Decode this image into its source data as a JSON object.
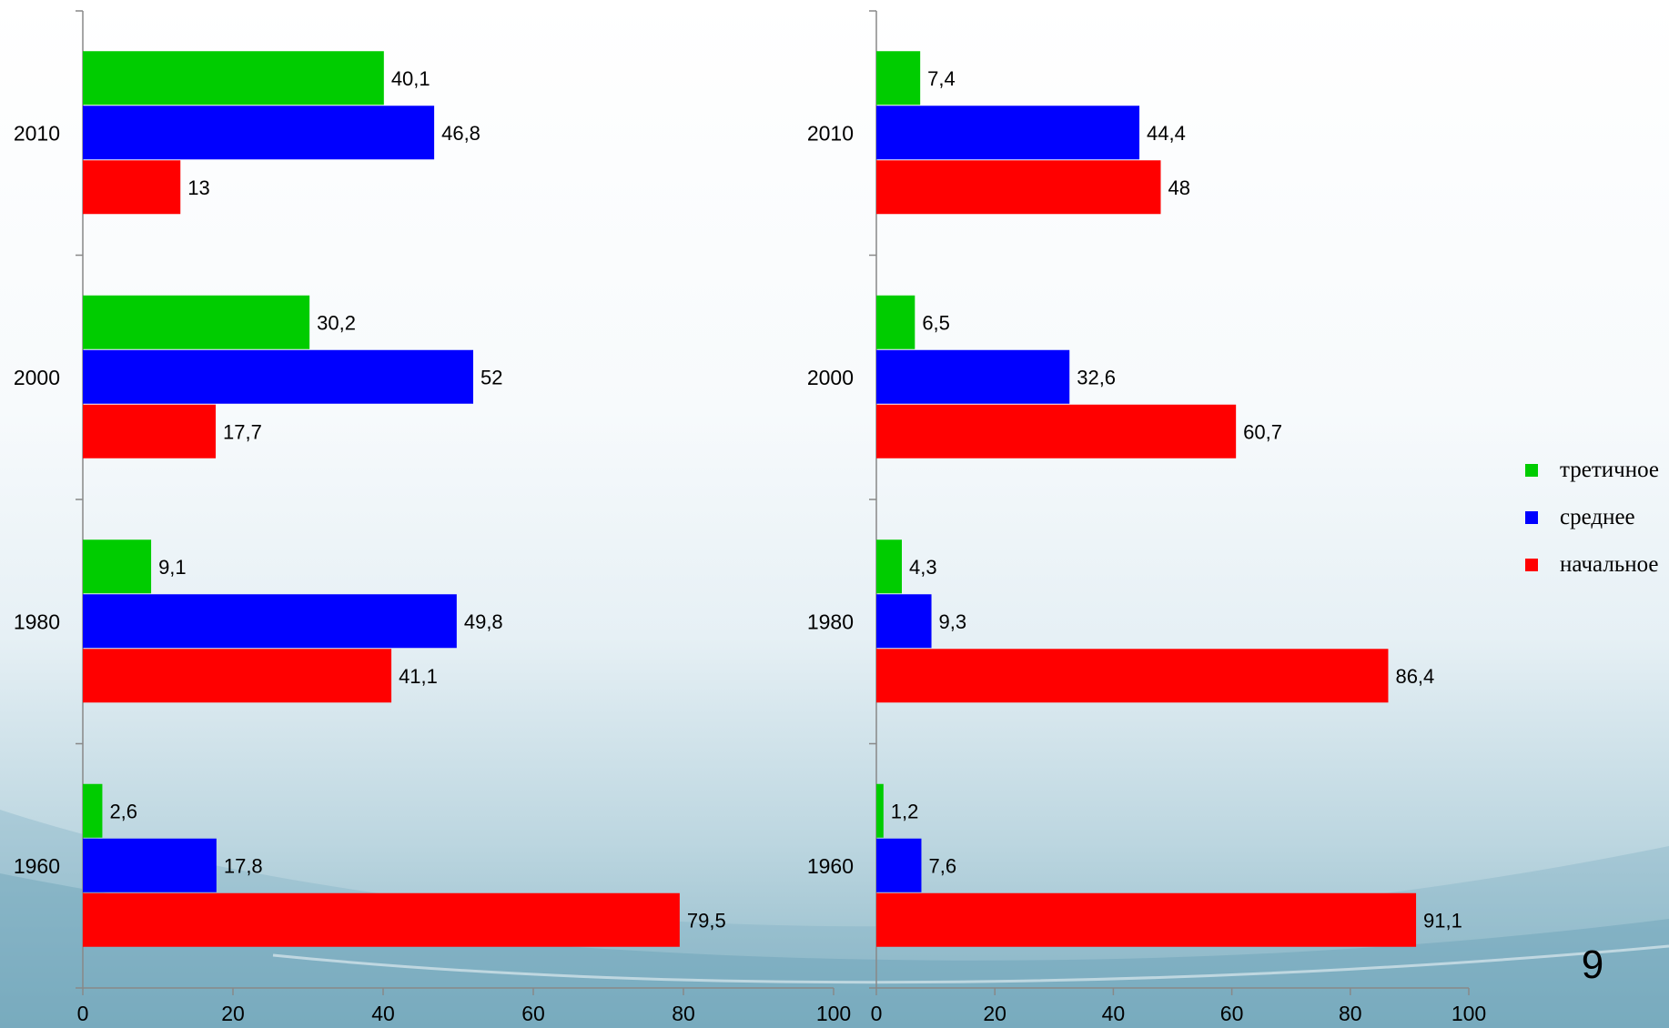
{
  "chart_data": [
    {
      "type": "bar",
      "orientation": "horizontal",
      "categories": [
        "1960",
        "1980",
        "2000",
        "2010"
      ],
      "series": [
        {
          "name": "третичное",
          "color": "#00cc00",
          "values": [
            2.6,
            9.1,
            30.2,
            40.1
          ],
          "labels": [
            "2,6",
            "9,1",
            "30,2",
            "40,1"
          ]
        },
        {
          "name": "среднее",
          "color": "#0000ff",
          "values": [
            17.8,
            49.8,
            52,
            46.8
          ],
          "labels": [
            "17,8",
            "49,8",
            "52",
            "46,8"
          ]
        },
        {
          "name": "начальное",
          "color": "#ff0000",
          "values": [
            79.5,
            41.1,
            17.7,
            13
          ],
          "labels": [
            "79,5",
            "41,1",
            "17,7",
            "13"
          ]
        }
      ],
      "xlim": [
        0,
        100
      ],
      "xticks": [
        "0",
        "20",
        "40",
        "60",
        "80",
        "100"
      ],
      "grid": false
    },
    {
      "type": "bar",
      "orientation": "horizontal",
      "categories": [
        "1960",
        "1980",
        "2000",
        "2010"
      ],
      "series": [
        {
          "name": "третичное",
          "color": "#00cc00",
          "values": [
            1.2,
            4.3,
            6.5,
            7.4
          ],
          "labels": [
            "1,2",
            "4,3",
            "6,5",
            "7,4"
          ]
        },
        {
          "name": "среднее",
          "color": "#0000ff",
          "values": [
            7.6,
            9.3,
            32.6,
            44.4
          ],
          "labels": [
            "7,6",
            "9,3",
            "32,6",
            "44,4"
          ]
        },
        {
          "name": "начальное",
          "color": "#ff0000",
          "values": [
            91.1,
            86.4,
            60.7,
            48
          ],
          "labels": [
            "91,1",
            "86,4",
            "60,7",
            "48"
          ]
        }
      ],
      "xlim": [
        0,
        100
      ],
      "xticks": [
        "0",
        "20",
        "40",
        "60",
        "80",
        "100"
      ],
      "grid": false
    }
  ],
  "legend": {
    "placement": "right",
    "items": [
      {
        "label": "третичное",
        "color": "#00cc00"
      },
      {
        "label": "среднее",
        "color": "#0000ff"
      },
      {
        "label": "начальное",
        "color": "#ff0000"
      }
    ]
  },
  "slide": {
    "number": "9"
  }
}
